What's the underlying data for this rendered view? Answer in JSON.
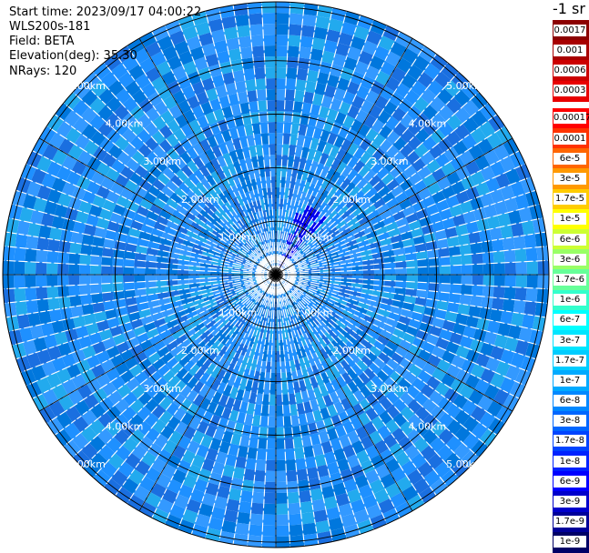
{
  "header": {
    "start_time": "Start time: 2023/09/17 04:00:22",
    "instrument": "WLS200s-181",
    "field": "Field: BETA",
    "elevation": "Elevation(deg): 35.30",
    "nrays": "NRays: 120"
  },
  "chart_data": {
    "type": "heatmap",
    "subtype": "polar-ppi",
    "n_rays": 120,
    "rings_km": [
      "1.00km",
      "2.00km",
      "3.00km",
      "4.00km",
      "5.00km"
    ],
    "ring_values_km": [
      1,
      2,
      3,
      4,
      5
    ],
    "range_max_km": 5.1,
    "colorbar": {
      "title": "-1 sr",
      "labels": [
        "0.0017",
        "0.001",
        "0.0006",
        "0.0003",
        "0.00017",
        "0.0001",
        "6e-5",
        "3e-5",
        "1.7e-5",
        "1e-5",
        "6e-6",
        "3e-6",
        "1.7e-6",
        "1e-6",
        "6e-7",
        "3e-7",
        "1.7e-7",
        "1e-7",
        "6e-8",
        "3e-8",
        "1.7e-8",
        "1e-8",
        "6e-9",
        "3e-9",
        "1.7e-9",
        "1e-9"
      ],
      "colors": [
        "#8b0000",
        "#a80000",
        "#cc0000",
        "#e80000",
        "#ff0000",
        "#ff3300",
        "#ff6600",
        "#ff9900",
        "#ffcc00",
        "#ffff00",
        "#ccff33",
        "#99ff66",
        "#66ff99",
        "#33ffcc",
        "#00ffff",
        "#00e5ff",
        "#00ccff",
        "#00aaff",
        "#0088ff",
        "#0066ff",
        "#0044ff",
        "#0022ff",
        "#0000ff",
        "#0000cc",
        "#000099",
        "#000066"
      ],
      "split_after_index": 3
    },
    "dominant_colors": [
      "#1e90ff",
      "#1a6fe0",
      "#22aaee",
      "#3399ff",
      "#0077dd"
    ],
    "enhanced_sector_color": "#0000ee"
  }
}
